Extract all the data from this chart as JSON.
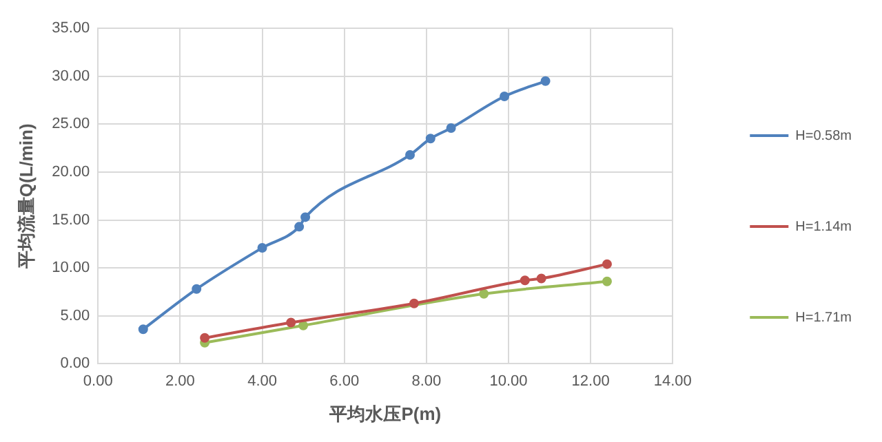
{
  "chart_data": {
    "type": "line",
    "xlabel": "平均水压P(m)",
    "ylabel": "平均流量Q(L/min)",
    "xlim": [
      0,
      14
    ],
    "xticks": [
      {
        "value": 0,
        "label": "0.00"
      },
      {
        "value": 2,
        "label": "2.00"
      },
      {
        "value": 4,
        "label": "4.00"
      },
      {
        "value": 6,
        "label": "6.00"
      },
      {
        "value": 8,
        "label": "8.00"
      },
      {
        "value": 10,
        "label": "10.00"
      },
      {
        "value": 12,
        "label": "12.00"
      },
      {
        "value": 14,
        "label": "14.00"
      }
    ],
    "ylim": [
      0,
      35
    ],
    "yticks": [
      {
        "value": 0,
        "label": "0.00"
      },
      {
        "value": 5,
        "label": "5.00"
      },
      {
        "value": 10,
        "label": "10.00"
      },
      {
        "value": 15,
        "label": "15.00"
      },
      {
        "value": 20,
        "label": "20.00"
      },
      {
        "value": 25,
        "label": "25.00"
      },
      {
        "value": 30,
        "label": "30.00"
      },
      {
        "value": 35,
        "label": "35.00"
      }
    ],
    "grid": true,
    "legend": "right",
    "marker": "circle",
    "line_style": "solid",
    "series": [
      {
        "name": "H=0.58m",
        "color": "#4f81bd",
        "x": [
          1.1,
          2.4,
          4.0,
          4.9,
          5.05,
          7.6,
          8.1,
          8.6,
          9.9,
          10.9
        ],
        "values": [
          3.6,
          7.8,
          12.1,
          14.3,
          15.3,
          21.8,
          23.5,
          24.6,
          27.9,
          29.5
        ]
      },
      {
        "name": "H=1.14m",
        "color": "#c0504d",
        "x": [
          2.6,
          4.7,
          7.7,
          10.4,
          10.8,
          12.4
        ],
        "values": [
          2.7,
          4.3,
          6.3,
          8.7,
          8.9,
          10.4
        ]
      },
      {
        "name": "H=1.71m",
        "color": "#9bbb59",
        "x": [
          2.6,
          5.0,
          9.4,
          12.4
        ],
        "values": [
          2.2,
          4.0,
          7.3,
          8.6
        ]
      }
    ]
  }
}
